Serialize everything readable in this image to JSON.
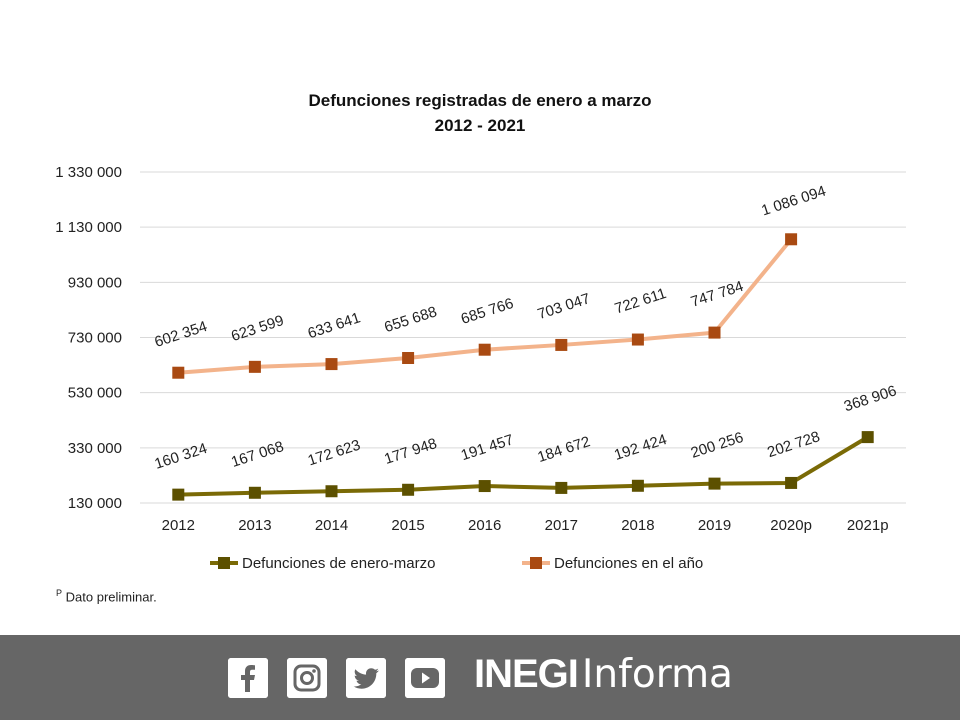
{
  "chart_data": {
    "type": "line",
    "title": "Defunciones registradas de enero a marzo",
    "subtitle": "2012 - 2021",
    "categories": [
      "2012",
      "2013",
      "2014",
      "2015",
      "2016",
      "2017",
      "2018",
      "2019",
      "2020p",
      "2021p"
    ],
    "y_ticks": [
      "1 330 000",
      "1 130 000",
      "930 000",
      "730 000",
      "530 000",
      "330 000",
      "130 000"
    ],
    "y_tick_values": [
      1330000,
      1130000,
      930000,
      730000,
      530000,
      330000,
      130000
    ],
    "ylim": [
      130000,
      1330000
    ],
    "grid": true,
    "legend_position": "bottom",
    "series": [
      {
        "name": "Defunciones de enero-marzo",
        "color": "#7a6a06",
        "marker_color": "#5c5000",
        "values": [
          160324,
          167068,
          172623,
          177948,
          191457,
          184672,
          192424,
          200256,
          202728,
          368906
        ],
        "labels": [
          "160 324",
          "167 068",
          "172 623",
          "177 948",
          "191 457",
          "184 672",
          "192 424",
          "200 256",
          "202 728",
          "368 906"
        ]
      },
      {
        "name": "Defunciones en el año",
        "color": "#f3b38b",
        "marker_color": "#a94a12",
        "values": [
          602354,
          623599,
          633641,
          655688,
          685766,
          703047,
          722611,
          747784,
          1086094,
          null
        ],
        "labels": [
          "602 354",
          "623 599",
          "633 641",
          "655 688",
          "685 766",
          "703 047",
          "722 611",
          "747 784",
          "1 086 094",
          ""
        ]
      }
    ]
  },
  "footnote": {
    "marker": "P",
    "text": "Dato preliminar."
  },
  "footer": {
    "social_icons": [
      "facebook-icon",
      "instagram-icon",
      "twitter-icon",
      "youtube-icon"
    ],
    "brand_bold": "INEGI",
    "brand_light": "Informa",
    "background": "#666666"
  }
}
